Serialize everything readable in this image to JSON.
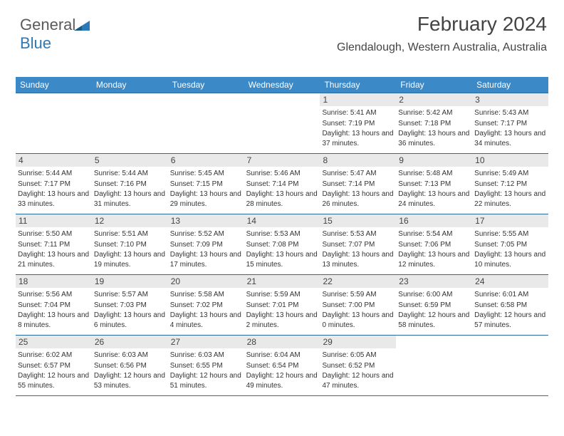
{
  "logo": {
    "text1": "General",
    "text2": "Blue"
  },
  "header": {
    "title": "February 2024",
    "location": "Glendalough, Western Australia, Australia"
  },
  "colors": {
    "header_bar": "#3b89c7",
    "day_num_bg": "#e9e9e9",
    "row_border": "#2a6aa0",
    "text": "#333333",
    "title_text": "#444444"
  },
  "days_of_week": [
    "Sunday",
    "Monday",
    "Tuesday",
    "Wednesday",
    "Thursday",
    "Friday",
    "Saturday"
  ],
  "weeks": [
    [
      null,
      null,
      null,
      null,
      {
        "n": "1",
        "rise": "5:41 AM",
        "set": "7:19 PM",
        "dl": "13 hours and 37 minutes."
      },
      {
        "n": "2",
        "rise": "5:42 AM",
        "set": "7:18 PM",
        "dl": "13 hours and 36 minutes."
      },
      {
        "n": "3",
        "rise": "5:43 AM",
        "set": "7:17 PM",
        "dl": "13 hours and 34 minutes."
      }
    ],
    [
      {
        "n": "4",
        "rise": "5:44 AM",
        "set": "7:17 PM",
        "dl": "13 hours and 33 minutes."
      },
      {
        "n": "5",
        "rise": "5:44 AM",
        "set": "7:16 PM",
        "dl": "13 hours and 31 minutes."
      },
      {
        "n": "6",
        "rise": "5:45 AM",
        "set": "7:15 PM",
        "dl": "13 hours and 29 minutes."
      },
      {
        "n": "7",
        "rise": "5:46 AM",
        "set": "7:14 PM",
        "dl": "13 hours and 28 minutes."
      },
      {
        "n": "8",
        "rise": "5:47 AM",
        "set": "7:14 PM",
        "dl": "13 hours and 26 minutes."
      },
      {
        "n": "9",
        "rise": "5:48 AM",
        "set": "7:13 PM",
        "dl": "13 hours and 24 minutes."
      },
      {
        "n": "10",
        "rise": "5:49 AM",
        "set": "7:12 PM",
        "dl": "13 hours and 22 minutes."
      }
    ],
    [
      {
        "n": "11",
        "rise": "5:50 AM",
        "set": "7:11 PM",
        "dl": "13 hours and 21 minutes."
      },
      {
        "n": "12",
        "rise": "5:51 AM",
        "set": "7:10 PM",
        "dl": "13 hours and 19 minutes."
      },
      {
        "n": "13",
        "rise": "5:52 AM",
        "set": "7:09 PM",
        "dl": "13 hours and 17 minutes."
      },
      {
        "n": "14",
        "rise": "5:53 AM",
        "set": "7:08 PM",
        "dl": "13 hours and 15 minutes."
      },
      {
        "n": "15",
        "rise": "5:53 AM",
        "set": "7:07 PM",
        "dl": "13 hours and 13 minutes."
      },
      {
        "n": "16",
        "rise": "5:54 AM",
        "set": "7:06 PM",
        "dl": "13 hours and 12 minutes."
      },
      {
        "n": "17",
        "rise": "5:55 AM",
        "set": "7:05 PM",
        "dl": "13 hours and 10 minutes."
      }
    ],
    [
      {
        "n": "18",
        "rise": "5:56 AM",
        "set": "7:04 PM",
        "dl": "13 hours and 8 minutes."
      },
      {
        "n": "19",
        "rise": "5:57 AM",
        "set": "7:03 PM",
        "dl": "13 hours and 6 minutes."
      },
      {
        "n": "20",
        "rise": "5:58 AM",
        "set": "7:02 PM",
        "dl": "13 hours and 4 minutes."
      },
      {
        "n": "21",
        "rise": "5:59 AM",
        "set": "7:01 PM",
        "dl": "13 hours and 2 minutes."
      },
      {
        "n": "22",
        "rise": "5:59 AM",
        "set": "7:00 PM",
        "dl": "13 hours and 0 minutes."
      },
      {
        "n": "23",
        "rise": "6:00 AM",
        "set": "6:59 PM",
        "dl": "12 hours and 58 minutes."
      },
      {
        "n": "24",
        "rise": "6:01 AM",
        "set": "6:58 PM",
        "dl": "12 hours and 57 minutes."
      }
    ],
    [
      {
        "n": "25",
        "rise": "6:02 AM",
        "set": "6:57 PM",
        "dl": "12 hours and 55 minutes."
      },
      {
        "n": "26",
        "rise": "6:03 AM",
        "set": "6:56 PM",
        "dl": "12 hours and 53 minutes."
      },
      {
        "n": "27",
        "rise": "6:03 AM",
        "set": "6:55 PM",
        "dl": "12 hours and 51 minutes."
      },
      {
        "n": "28",
        "rise": "6:04 AM",
        "set": "6:54 PM",
        "dl": "12 hours and 49 minutes."
      },
      {
        "n": "29",
        "rise": "6:05 AM",
        "set": "6:52 PM",
        "dl": "12 hours and 47 minutes."
      },
      null,
      null
    ]
  ],
  "labels": {
    "sunrise": "Sunrise:",
    "sunset": "Sunset:",
    "daylight": "Daylight:"
  }
}
